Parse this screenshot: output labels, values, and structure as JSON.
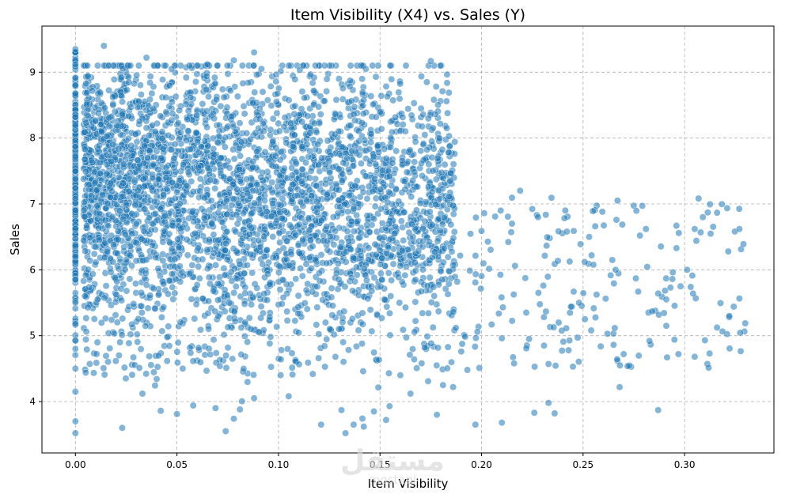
{
  "chart_data": {
    "type": "scatter",
    "title": "Item Visibility (X4) vs. Sales (Y)",
    "xlabel": "Item Visibility",
    "ylabel": "Sales",
    "xlim": [
      -0.0165,
      0.344
    ],
    "ylim": [
      3.22,
      9.7
    ],
    "x_ticks": [
      0.0,
      0.05,
      0.1,
      0.15,
      0.2,
      0.25,
      0.3
    ],
    "x_tick_labels": [
      "0.00",
      "0.05",
      "0.10",
      "0.15",
      "0.20",
      "0.25",
      "0.30"
    ],
    "y_ticks": [
      4,
      5,
      6,
      7,
      8,
      9
    ],
    "y_tick_labels": [
      "4",
      "5",
      "6",
      "7",
      "8",
      "9"
    ],
    "grid": true,
    "grid_style": "dashed",
    "point_color": "#1f77b4",
    "sample_points": [
      {
        "x": 0.0,
        "y": 9.35
      },
      {
        "x": 0.0,
        "y": 9.12
      },
      {
        "x": 0.0,
        "y": 8.8
      },
      {
        "x": 0.0,
        "y": 8.2
      },
      {
        "x": 0.0,
        "y": 7.5
      },
      {
        "x": 0.0,
        "y": 6.9
      },
      {
        "x": 0.0,
        "y": 6.2
      },
      {
        "x": 0.0,
        "y": 5.5
      },
      {
        "x": 0.0,
        "y": 4.8
      },
      {
        "x": 0.0,
        "y": 4.5
      },
      {
        "x": 0.0,
        "y": 4.15
      },
      {
        "x": 0.0,
        "y": 3.7
      },
      {
        "x": 0.0,
        "y": 3.52
      },
      {
        "x": 0.014,
        "y": 9.4
      },
      {
        "x": 0.035,
        "y": 9.22
      },
      {
        "x": 0.088,
        "y": 9.3
      },
      {
        "x": 0.078,
        "y": 9.18
      },
      {
        "x": 0.155,
        "y": 9.1
      },
      {
        "x": 0.175,
        "y": 9.17
      },
      {
        "x": 0.143,
        "y": 9.05
      },
      {
        "x": 0.065,
        "y": 9.12
      },
      {
        "x": 0.023,
        "y": 3.6
      },
      {
        "x": 0.074,
        "y": 3.55
      },
      {
        "x": 0.133,
        "y": 3.52
      },
      {
        "x": 0.137,
        "y": 3.65
      },
      {
        "x": 0.142,
        "y": 3.62
      },
      {
        "x": 0.178,
        "y": 3.8
      },
      {
        "x": 0.197,
        "y": 3.65
      },
      {
        "x": 0.21,
        "y": 3.68
      },
      {
        "x": 0.226,
        "y": 3.83
      },
      {
        "x": 0.236,
        "y": 3.82
      },
      {
        "x": 0.233,
        "y": 3.98
      },
      {
        "x": 0.287,
        "y": 3.87
      },
      {
        "x": 0.219,
        "y": 7.2
      },
      {
        "x": 0.267,
        "y": 7.05
      },
      {
        "x": 0.309,
        "y": 6.8
      },
      {
        "x": 0.305,
        "y": 6.62
      },
      {
        "x": 0.296,
        "y": 6.67
      },
      {
        "x": 0.327,
        "y": 6.62
      },
      {
        "x": 0.329,
        "y": 6.39
      },
      {
        "x": 0.278,
        "y": 6.52
      },
      {
        "x": 0.256,
        "y": 6.66
      },
      {
        "x": 0.253,
        "y": 6.5
      },
      {
        "x": 0.242,
        "y": 6.58
      },
      {
        "x": 0.2,
        "y": 6.59
      },
      {
        "x": 0.215,
        "y": 6.7
      },
      {
        "x": 0.303,
        "y": 5.74
      },
      {
        "x": 0.298,
        "y": 5.75
      },
      {
        "x": 0.291,
        "y": 5.55
      },
      {
        "x": 0.294,
        "y": 5.86
      },
      {
        "x": 0.287,
        "y": 5.64
      },
      {
        "x": 0.276,
        "y": 5.87
      },
      {
        "x": 0.266,
        "y": 6.0
      },
      {
        "x": 0.322,
        "y": 5.3
      },
      {
        "x": 0.31,
        "y": 4.93
      },
      {
        "x": 0.305,
        "y": 4.68
      },
      {
        "x": 0.297,
        "y": 4.72
      },
      {
        "x": 0.295,
        "y": 4.94
      },
      {
        "x": 0.291,
        "y": 5.15
      },
      {
        "x": 0.284,
        "y": 5.37
      },
      {
        "x": 0.27,
        "y": 4.72
      },
      {
        "x": 0.268,
        "y": 4.22
      },
      {
        "x": 0.262,
        "y": 5.03
      },
      {
        "x": 0.254,
        "y": 5.08
      },
      {
        "x": 0.248,
        "y": 5.5
      },
      {
        "x": 0.244,
        "y": 5.44
      },
      {
        "x": 0.238,
        "y": 5.2
      },
      {
        "x": 0.233,
        "y": 4.57
      },
      {
        "x": 0.245,
        "y": 4.53
      },
      {
        "x": 0.228,
        "y": 5.65
      },
      {
        "x": 0.222,
        "y": 5.35
      },
      {
        "x": 0.216,
        "y": 4.58
      },
      {
        "x": 0.21,
        "y": 4.96
      },
      {
        "x": 0.205,
        "y": 5.17
      },
      {
        "x": 0.193,
        "y": 4.48
      },
      {
        "x": 0.186,
        "y": 4.22
      },
      {
        "x": 0.19,
        "y": 4.76
      },
      {
        "x": 0.181,
        "y": 4.25
      },
      {
        "x": 0.172,
        "y": 4.82
      },
      {
        "x": 0.165,
        "y": 4.12
      },
      {
        "x": 0.16,
        "y": 4.4
      },
      {
        "x": 0.153,
        "y": 3.72
      },
      {
        "x": 0.147,
        "y": 3.85
      },
      {
        "x": 0.131,
        "y": 3.87
      },
      {
        "x": 0.121,
        "y": 3.65
      },
      {
        "x": 0.105,
        "y": 4.08
      },
      {
        "x": 0.088,
        "y": 4.05
      },
      {
        "x": 0.081,
        "y": 3.88
      },
      {
        "x": 0.069,
        "y": 3.9
      },
      {
        "x": 0.058,
        "y": 3.94
      },
      {
        "x": 0.05,
        "y": 3.81
      },
      {
        "x": 0.042,
        "y": 3.86
      },
      {
        "x": 0.033,
        "y": 4.12
      },
      {
        "x": 0.078,
        "y": 3.74
      }
    ]
  },
  "watermark": {
    "arabic": "مستقل",
    "latin": "mostaql"
  }
}
